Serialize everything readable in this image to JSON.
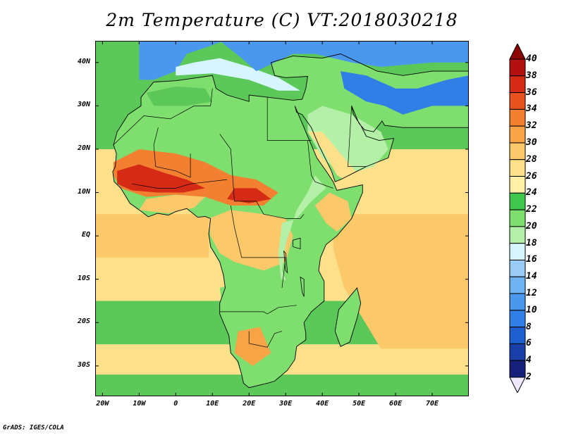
{
  "title": "2m Temperature (C) VT:2018030218",
  "credit": "GrADS: IGES/COLA",
  "map": {
    "lon_range": [
      -22,
      80
    ],
    "lat_range": [
      -37,
      45
    ],
    "lat_ticks": [
      {
        "value": 40,
        "label": "40N"
      },
      {
        "value": 30,
        "label": "30N"
      },
      {
        "value": 20,
        "label": "20N"
      },
      {
        "value": 10,
        "label": "10N"
      },
      {
        "value": 0,
        "label": "EQ"
      },
      {
        "value": -10,
        "label": "10S"
      },
      {
        "value": -20,
        "label": "20S"
      },
      {
        "value": -30,
        "label": "30S"
      }
    ],
    "lon_ticks": [
      {
        "value": -20,
        "label": "20W"
      },
      {
        "value": -10,
        "label": "10W"
      },
      {
        "value": 0,
        "label": "0"
      },
      {
        "value": 10,
        "label": "10E"
      },
      {
        "value": 20,
        "label": "20E"
      },
      {
        "value": 30,
        "label": "30E"
      },
      {
        "value": 40,
        "label": "40E"
      },
      {
        "value": 50,
        "label": "50E"
      },
      {
        "value": 60,
        "label": "60E"
      },
      {
        "value": 70,
        "label": "70E"
      }
    ]
  },
  "colorbar": {
    "levels": [
      "2",
      "4",
      "6",
      "8",
      "10",
      "12",
      "14",
      "16",
      "18",
      "20",
      "22",
      "24",
      "26",
      "28",
      "30",
      "32",
      "34",
      "36",
      "38",
      "40"
    ],
    "colors": [
      "#f0e8ff",
      "#16207a",
      "#1a3fa8",
      "#1e5fd0",
      "#2f7fe6",
      "#4a98ee",
      "#6fb2f2",
      "#99cbf5",
      "#d6f5ff",
      "#b4f0a8",
      "#7fdf6e",
      "#3fc64c",
      "#fff0a6",
      "#fde08a",
      "#fbc86a",
      "#f7a447",
      "#f28030",
      "#e8521f",
      "#d52a15",
      "#b31010",
      "#8c0707"
    ]
  },
  "field_colors": {
    "ocean_cool": "#5cc859",
    "ocean_mild": "#fde08a",
    "ocean_warm": "#fbc86a",
    "med": "#d6f5ff",
    "europe": "#4a98ee",
    "sahara": "#7fdf6e",
    "sahel_hot": "#d52a15",
    "sahel_warm": "#f28030",
    "central": "#fbc86a",
    "east_highland": "#b4f0a8",
    "south": "#7fdf6e",
    "kalahari": "#f7a447",
    "arabia": "#b4f0a8",
    "mideast_cold": "#2f7fe6"
  }
}
